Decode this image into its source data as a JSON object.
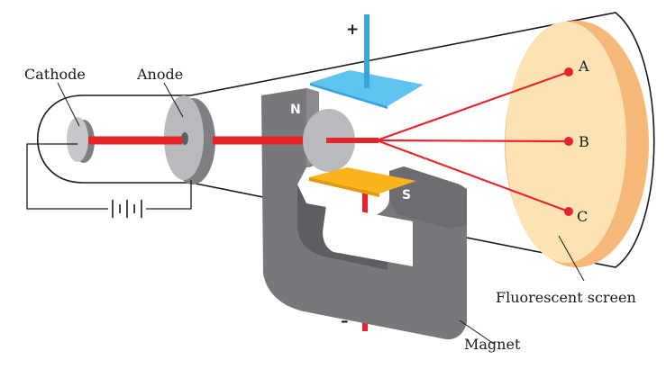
{
  "labels": {
    "cathode": "Cathode",
    "anode": "Anode",
    "screen": "Fluorescent screen",
    "magnet": "Magnet",
    "point_a": "A",
    "point_b": "B",
    "point_c": "C",
    "plus": "+",
    "minus": "–",
    "north": "N",
    "south": "S"
  },
  "colors": {
    "beam": "#e8232a",
    "upper_plate": "#5ec4ef",
    "lower_plate": "#f9b31b",
    "magnet": "#77787b",
    "screen": "#fde3b4",
    "electrode": "#b9babd"
  }
}
